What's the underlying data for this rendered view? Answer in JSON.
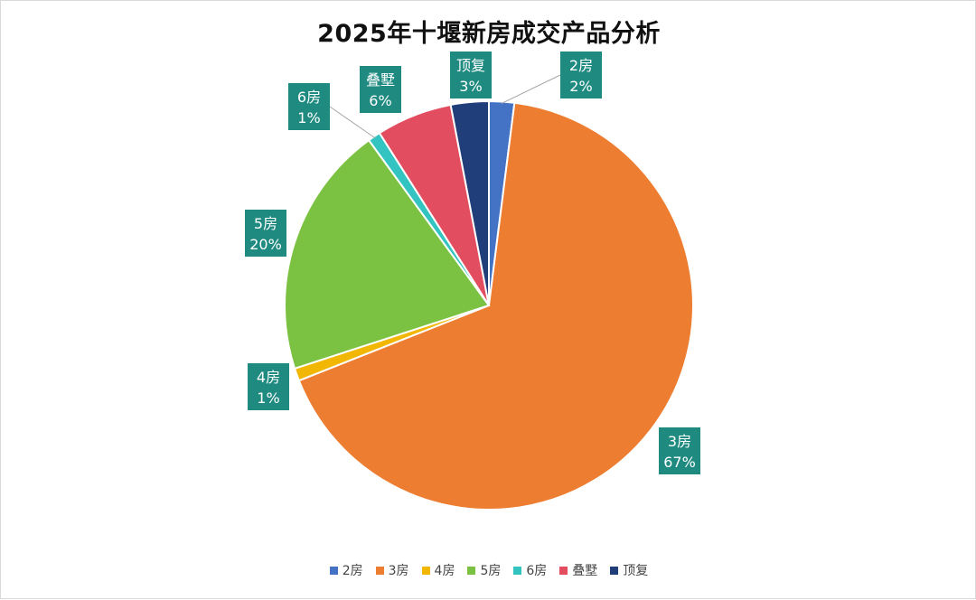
{
  "chart_data": {
    "type": "pie",
    "title": "2025年十堰新房成交产品分析",
    "categories": [
      "2房",
      "3房",
      "4房",
      "5房",
      "6房",
      "叠墅",
      "顶复"
    ],
    "values": [
      2,
      67,
      1,
      20,
      1,
      6,
      3
    ],
    "value_labels": [
      "2%",
      "67%",
      "1%",
      "20%",
      "1%",
      "6%",
      "3%"
    ],
    "colors": [
      "#4472c4",
      "#ed7d31",
      "#f2b705",
      "#7cc242",
      "#33c3c0",
      "#e24d60",
      "#203e7a"
    ],
    "label_box_color": "#1f8a80",
    "legend_position": "bottom"
  }
}
